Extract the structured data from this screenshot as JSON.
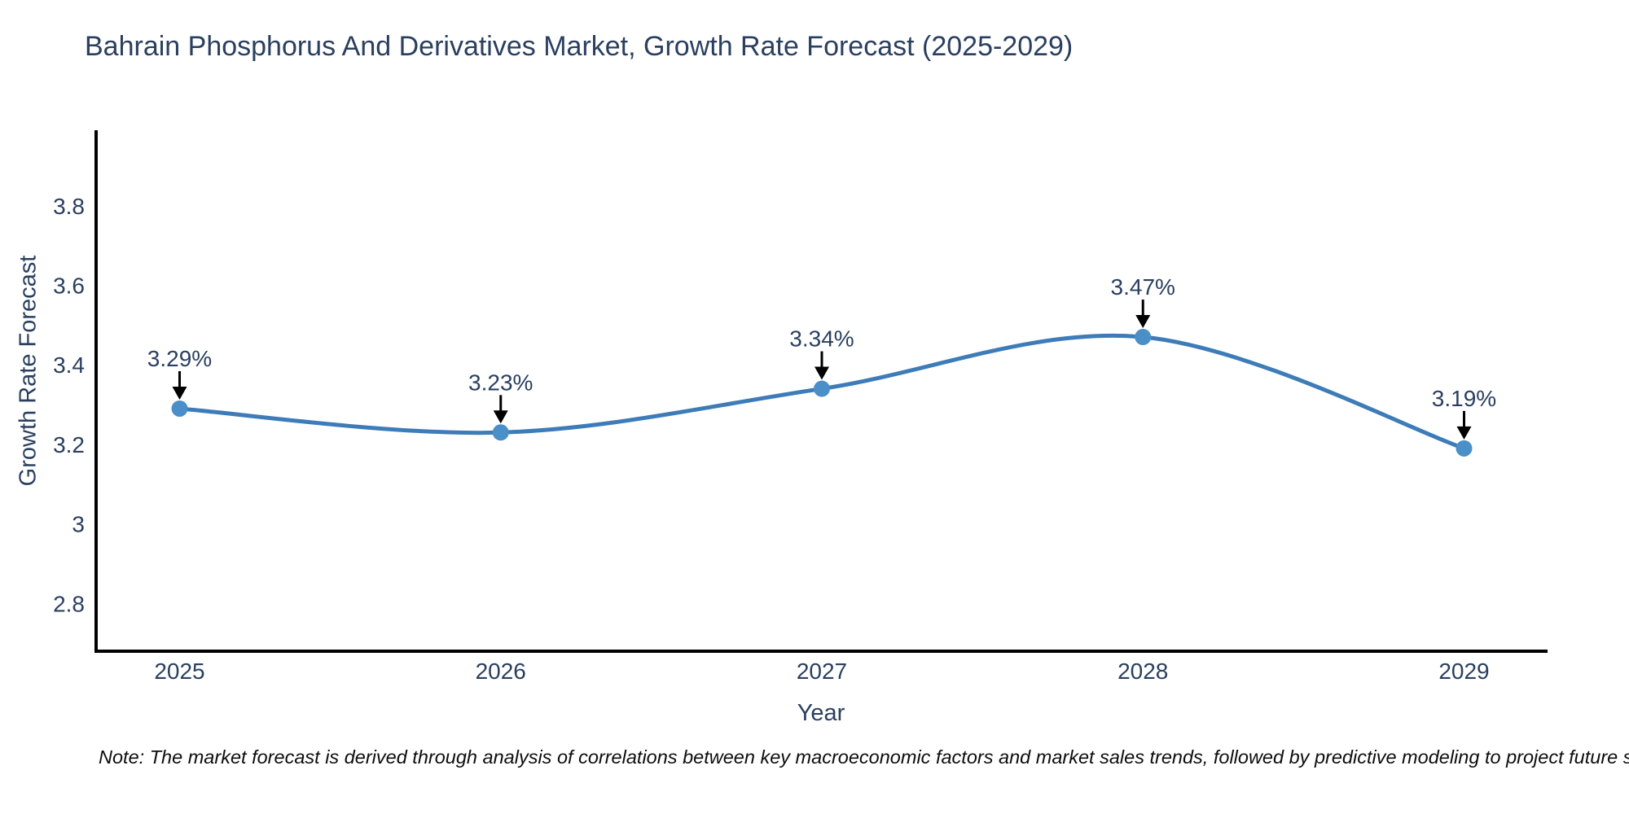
{
  "title": "Bahrain Phosphorus And Derivatives Market, Growth Rate Forecast (2025-2029)",
  "footnote": "Note: The market forecast is derived through analysis of correlations between key macroeconomic factors and market sales trends, followed by predictive modeling to project future sales",
  "chart_data": {
    "type": "line",
    "title": "Bahrain Phosphorus And Derivatives Market, Growth Rate Forecast (2025-2029)",
    "xlabel": "Year",
    "ylabel": "Growth Rate Forecast",
    "x": [
      2025,
      2026,
      2027,
      2028,
      2029
    ],
    "series": [
      {
        "name": "Growth Rate Forecast",
        "values": [
          3.29,
          3.23,
          3.34,
          3.47,
          3.19
        ]
      }
    ],
    "point_labels": [
      "3.29%",
      "3.23%",
      "3.34%",
      "3.47%",
      "3.19%"
    ],
    "yticks": [
      2.8,
      3,
      3.2,
      3.4,
      3.6,
      3.8
    ],
    "ylim": [
      2.68,
      3.99
    ],
    "xlim": [
      2024.74,
      2029.26
    ],
    "line_shape": "spline",
    "grid": false,
    "legend": "none",
    "colors": {
      "line": "#3d7cb8",
      "marker": "#4a8fc7",
      "axis": "#000000",
      "text": "#2a3f5f",
      "annotation_arrow": "#000000"
    }
  }
}
